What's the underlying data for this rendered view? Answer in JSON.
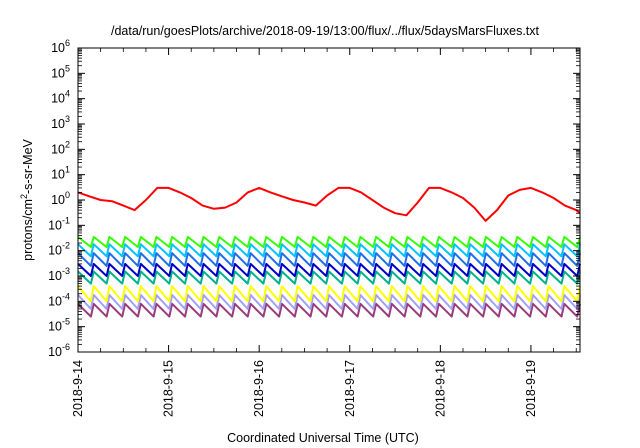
{
  "chart_data": {
    "type": "line",
    "title": "/data/run/goesPlots/archive/2018-09-19/13:00/flux/../flux/5daysMarsFluxes.txt",
    "xlabel": "Coordinated Universal Time (UTC)",
    "ylabel": {
      "prefix": "protons/cm",
      "sup": "2",
      "suffix": "-s-sr-MeV"
    },
    "y_scale": "log",
    "ylim": [
      1e-06,
      1000000.0
    ],
    "y_ticks": [
      {
        "base": "10",
        "exp": "-6",
        "value": 1e-06
      },
      {
        "base": "10",
        "exp": "-5",
        "value": 1e-05
      },
      {
        "base": "10",
        "exp": "-4",
        "value": 0.0001
      },
      {
        "base": "10",
        "exp": "-3",
        "value": 0.001
      },
      {
        "base": "10",
        "exp": "-2",
        "value": 0.01
      },
      {
        "base": "10",
        "exp": "-1",
        "value": 0.1
      },
      {
        "base": "10",
        "exp": "0",
        "value": 1
      },
      {
        "base": "10",
        "exp": "1",
        "value": 10
      },
      {
        "base": "10",
        "exp": "2",
        "value": 100
      },
      {
        "base": "10",
        "exp": "3",
        "value": 1000
      },
      {
        "base": "10",
        "exp": "4",
        "value": 10000
      },
      {
        "base": "10",
        "exp": "5",
        "value": 100000
      },
      {
        "base": "10",
        "exp": "6",
        "value": 1000000
      }
    ],
    "xlim": [
      "2018-09-14 00:00",
      "2018-09-19 13:00"
    ],
    "x_ticks": [
      {
        "label": "2018-9-14",
        "date": "2018-09-14"
      },
      {
        "label": "2018-9-15",
        "date": "2018-09-15"
      },
      {
        "label": "2018-9-16",
        "date": "2018-09-16"
      },
      {
        "label": "2018-9-17",
        "date": "2018-09-17"
      },
      {
        "label": "2018-9-18",
        "date": "2018-09-18"
      },
      {
        "label": "2018-9-19",
        "date": "2018-09-19"
      }
    ],
    "grid": false,
    "legend": "none",
    "series": [
      {
        "color": "#ff0000",
        "x": [
          "2018-09-14 00:00",
          "2018-09-14 03:00",
          "2018-09-14 06:00",
          "2018-09-14 09:00",
          "2018-09-14 12:00",
          "2018-09-14 15:00",
          "2018-09-14 18:00",
          "2018-09-14 21:00",
          "2018-09-15 00:00",
          "2018-09-15 03:00",
          "2018-09-15 06:00",
          "2018-09-15 09:00",
          "2018-09-15 12:00",
          "2018-09-15 15:00",
          "2018-09-15 18:00",
          "2018-09-15 21:00",
          "2018-09-16 00:00",
          "2018-09-16 03:00",
          "2018-09-16 06:00",
          "2018-09-16 09:00",
          "2018-09-16 12:00",
          "2018-09-16 15:00",
          "2018-09-16 18:00",
          "2018-09-16 21:00",
          "2018-09-17 00:00",
          "2018-09-17 03:00",
          "2018-09-17 06:00",
          "2018-09-17 09:00",
          "2018-09-17 12:00",
          "2018-09-17 15:00",
          "2018-09-17 18:00",
          "2018-09-17 21:00",
          "2018-09-18 00:00",
          "2018-09-18 03:00",
          "2018-09-18 06:00",
          "2018-09-18 09:00",
          "2018-09-18 12:00",
          "2018-09-18 15:00",
          "2018-09-18 18:00",
          "2018-09-18 21:00",
          "2018-09-19 00:00",
          "2018-09-19 03:00",
          "2018-09-19 06:00",
          "2018-09-19 09:00",
          "2018-09-19 12:00",
          "2018-09-19 13:00"
        ],
        "values": [
          2.0,
          1.4,
          1.0,
          0.9,
          0.6,
          0.4,
          1.0,
          3.0,
          3.0,
          2.0,
          1.2,
          0.6,
          0.45,
          0.5,
          0.8,
          2.0,
          3.0,
          2.0,
          1.4,
          1.0,
          0.8,
          0.6,
          1.5,
          3.0,
          3.0,
          2.0,
          1.0,
          0.5,
          0.3,
          0.25,
          0.8,
          3.0,
          3.0,
          2.0,
          1.2,
          0.5,
          0.15,
          0.4,
          1.5,
          2.5,
          3.0,
          2.0,
          1.2,
          0.6,
          0.4,
          0.3
        ]
      },
      {
        "color": "#33ff00",
        "pattern": "sawtooth",
        "peak": 0.035,
        "trough": 0.014
      },
      {
        "color": "#00c2ff",
        "pattern": "sawtooth",
        "peak": 0.018,
        "trough": 0.006
      },
      {
        "color": "#1f6ee8",
        "pattern": "sawtooth",
        "peak": 0.008,
        "trough": 0.0025
      },
      {
        "color": "#0000c8",
        "pattern": "sawtooth",
        "peak": 0.003,
        "trough": 0.001
      },
      {
        "color": "#00b38a",
        "pattern": "sawtooth",
        "peak": 0.0015,
        "trough": 0.0005
      },
      {
        "color": "#ffff00",
        "pattern": "sawtooth",
        "peak": 0.0004,
        "trough": 0.0001
      },
      {
        "color": "#a0a0ff",
        "pattern": "sawtooth",
        "peak": 0.00018,
        "trough": 5e-05
      },
      {
        "color": "#9b3a7a",
        "pattern": "sawtooth",
        "peak": 8e-05,
        "trough": 2.5e-05
      }
    ],
    "sawtooth_teeth": 32
  }
}
